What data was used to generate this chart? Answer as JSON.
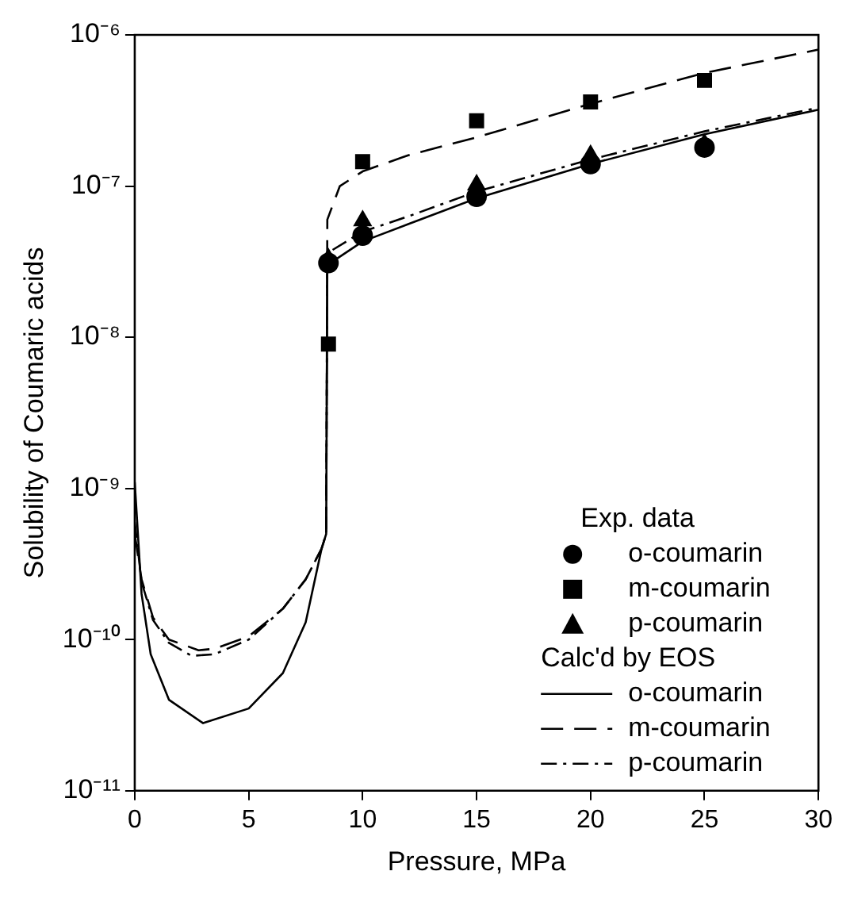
{
  "chart_data": {
    "type": "scatter",
    "xlabel": "Pressure, MPa",
    "ylabel": "Solubility of Coumaric acids",
    "log": "y",
    "xlim": [
      0,
      30
    ],
    "xticks": [
      0,
      5,
      10,
      15,
      20,
      25,
      30
    ],
    "ylim": [
      1e-11,
      1e-06
    ],
    "yticks": [
      {
        "value": 1e-11,
        "label": "10⁻¹¹"
      },
      {
        "value": 1e-10,
        "label": "10⁻¹⁰"
      },
      {
        "value": 1e-09,
        "label": "10⁻⁹"
      },
      {
        "value": 1e-08,
        "label": "10⁻⁸"
      },
      {
        "value": 1e-07,
        "label": "10⁻⁷"
      },
      {
        "value": 1e-06,
        "label": "10⁻⁶"
      }
    ],
    "grid": false,
    "legend": "bottom right",
    "legend_title": "Exp. data",
    "annotations": [
      "Calc'd by EOS"
    ],
    "series": [
      {
        "name": "o-coumarin",
        "type": "scatter",
        "marker": "circle",
        "color": "#000000",
        "x": [
          8.5,
          10,
          15,
          20,
          25
        ],
        "values": [
          3.1e-08,
          4.7e-08,
          8.5e-08,
          1.4e-07,
          1.8e-07
        ]
      },
      {
        "name": "m-coumarin",
        "type": "scatter",
        "marker": "square",
        "color": "#000000",
        "x": [
          8.5,
          10,
          15,
          20,
          25
        ],
        "values": [
          9e-09,
          1.45e-07,
          2.7e-07,
          3.6e-07,
          5e-07
        ]
      },
      {
        "name": "p-coumarin",
        "type": "scatter",
        "marker": "triangle",
        "color": "#000000",
        "x": [
          8.5,
          10,
          15,
          20,
          25
        ],
        "values": [
          3.3e-08,
          5.9e-08,
          1.02e-07,
          1.6e-07,
          1.9e-07
        ]
      },
      {
        "name": "o-coumarin",
        "type": "line",
        "line_style": "solid",
        "marker": "none",
        "color": "#000000",
        "x": [
          0,
          0.3,
          0.7,
          1.5,
          3,
          5,
          6.5,
          7.5,
          8.2,
          8.4,
          8.45,
          10,
          12,
          15,
          20,
          25,
          30
        ],
        "values": [
          1.1e-09,
          2e-10,
          8e-11,
          4e-11,
          2.8e-11,
          3.5e-11,
          6e-11,
          1.3e-10,
          4e-10,
          5e-10,
          3e-08,
          4.3e-08,
          5.6e-08,
          8.3e-08,
          1.4e-07,
          2.2e-07,
          3.2e-07
        ]
      },
      {
        "name": "m-coumarin",
        "type": "line",
        "line_style": "dashed",
        "marker": "none",
        "color": "#000000",
        "x": [
          0,
          0.3,
          0.8,
          1.5,
          2.8,
          3.5,
          5,
          6.5,
          7.5,
          8.2,
          8.4,
          8.45,
          9,
          10,
          12,
          15,
          20,
          25,
          30
        ],
        "values": [
          5e-10,
          2.5e-10,
          1.4e-10,
          1e-10,
          8.5e-11,
          8.7e-11,
          1.05e-10,
          1.6e-10,
          2.5e-10,
          4e-10,
          5e-10,
          6e-08,
          1e-07,
          1.25e-07,
          1.6e-07,
          2.1e-07,
          3.5e-07,
          5.6e-07,
          8e-07
        ]
      },
      {
        "name": "p-coumarin",
        "type": "line",
        "line_style": "dashdot",
        "marker": "none",
        "color": "#000000",
        "x": [
          0,
          0.3,
          0.8,
          1.5,
          2.5,
          3.5,
          5,
          6.5,
          7.5,
          8.2,
          8.4,
          8.45,
          10,
          12,
          15,
          20,
          25,
          30
        ],
        "values": [
          6e-10,
          2.4e-10,
          1.35e-10,
          9.5e-11,
          7.8e-11,
          8e-11,
          1e-10,
          1.6e-10,
          2.5e-10,
          4e-10,
          5e-10,
          3.6e-08,
          5e-08,
          6.3e-08,
          9.2e-08,
          1.5e-07,
          2.3e-07,
          3.3e-07
        ]
      }
    ]
  }
}
